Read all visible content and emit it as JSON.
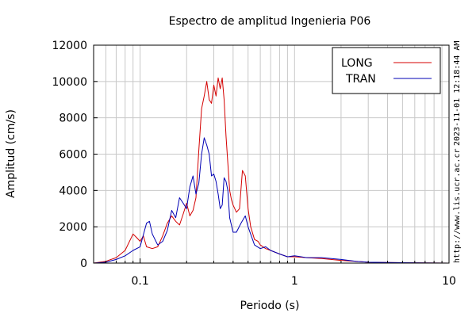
{
  "chart_data": {
    "type": "line",
    "title": "Espectro de amplitud Ingenieria P06",
    "xlabel": "Periodo (s)",
    "ylabel": "Amplitud (cm/s)",
    "xscale": "log",
    "xlim": [
      0.05,
      10
    ],
    "ylim": [
      0,
      12000
    ],
    "x_ticks": [
      0.1,
      1,
      10
    ],
    "x_tick_labels": [
      "0.1",
      "1",
      "10"
    ],
    "y_ticks": [
      0,
      2000,
      4000,
      6000,
      8000,
      10000,
      12000
    ],
    "y_tick_labels": [
      "0",
      "2000",
      "4000",
      "6000",
      "8000",
      "10000",
      "12000"
    ],
    "grid": true,
    "legend_position": "top-right",
    "series": [
      {
        "name": "LONG",
        "color": "#d40000",
        "x": [
          0.05,
          0.06,
          0.07,
          0.08,
          0.09,
          0.095,
          0.1,
          0.105,
          0.11,
          0.12,
          0.13,
          0.14,
          0.15,
          0.16,
          0.17,
          0.18,
          0.19,
          0.2,
          0.21,
          0.22,
          0.23,
          0.24,
          0.25,
          0.26,
          0.27,
          0.28,
          0.29,
          0.3,
          0.31,
          0.32,
          0.33,
          0.34,
          0.35,
          0.36,
          0.37,
          0.38,
          0.39,
          0.4,
          0.42,
          0.44,
          0.46,
          0.48,
          0.5,
          0.52,
          0.55,
          0.58,
          0.6,
          0.65,
          0.7,
          0.8,
          0.9,
          1.0,
          1.2,
          1.5,
          2.0,
          2.5,
          3.0,
          4.0,
          5.0,
          7.0,
          10.0
        ],
        "y": [
          0,
          100,
          300,
          700,
          1600,
          1400,
          1200,
          1500,
          900,
          800,
          900,
          1500,
          2200,
          2600,
          2300,
          2100,
          2700,
          3300,
          2600,
          2900,
          3600,
          6200,
          8500,
          9200,
          10000,
          9000,
          8800,
          9800,
          9200,
          10200,
          9600,
          10200,
          9000,
          7000,
          5500,
          4000,
          3500,
          3200,
          2800,
          3000,
          5100,
          4800,
          3000,
          2000,
          1300,
          1200,
          1000,
          800,
          700,
          500,
          350,
          350,
          300,
          250,
          150,
          100,
          50,
          30,
          20,
          10,
          0
        ]
      },
      {
        "name": "TRAN",
        "color": "#0000b4",
        "x": [
          0.05,
          0.06,
          0.07,
          0.08,
          0.09,
          0.1,
          0.11,
          0.115,
          0.12,
          0.13,
          0.14,
          0.15,
          0.16,
          0.17,
          0.18,
          0.19,
          0.2,
          0.21,
          0.22,
          0.23,
          0.24,
          0.25,
          0.26,
          0.27,
          0.28,
          0.29,
          0.3,
          0.31,
          0.32,
          0.33,
          0.34,
          0.35,
          0.36,
          0.37,
          0.38,
          0.4,
          0.42,
          0.45,
          0.48,
          0.5,
          0.55,
          0.6,
          0.65,
          0.7,
          0.8,
          0.9,
          1.0,
          1.2,
          1.5,
          2.0,
          2.5,
          3.0,
          4.0,
          5.0,
          7.0,
          10.0
        ],
        "y": [
          0,
          50,
          200,
          400,
          700,
          900,
          2200,
          2300,
          1600,
          1000,
          1200,
          1800,
          2900,
          2500,
          3600,
          3300,
          3000,
          4200,
          4800,
          3800,
          4400,
          6000,
          6900,
          6500,
          6000,
          4800,
          4900,
          4500,
          3800,
          3000,
          3200,
          4700,
          4500,
          4000,
          2500,
          1700,
          1700,
          2200,
          2600,
          2000,
          1000,
          800,
          900,
          700,
          500,
          350,
          400,
          300,
          300,
          200,
          100,
          50,
          30,
          20,
          10,
          0
        ]
      }
    ]
  },
  "side_text": {
    "timestamp": "2023-11-01 12:18:44 AM",
    "url": "http://www.lis.ucr.ac.cr"
  }
}
